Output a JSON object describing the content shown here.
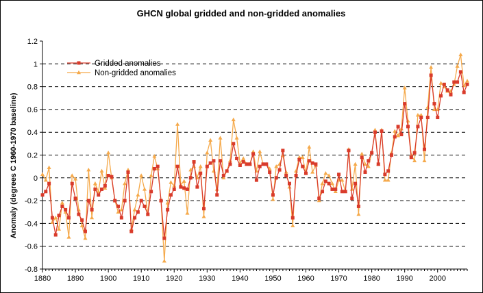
{
  "chart_data": {
    "type": "line",
    "title": "GHCN global gridded and non-gridded anomalies",
    "xlabel": "",
    "ylabel": "Anomaly (degrees C 1960-1970 baseline)",
    "xlim": [
      1880,
      2009
    ],
    "ylim": [
      -0.8,
      1.2
    ],
    "x_ticks": [
      "1880",
      "1890",
      "1900",
      "1910",
      "1920",
      "1930",
      "1940",
      "1950",
      "1960",
      "1970",
      "1980",
      "1990",
      "2000"
    ],
    "y_ticks": [
      "-0.8",
      "-0.6",
      "-0.4",
      "-0.2",
      "0",
      "0.2",
      "0.4",
      "0.6",
      "0.8",
      "1",
      "1.2"
    ],
    "grid": "horizontal dashed",
    "legend_position": "top-left",
    "x": [
      1880,
      1881,
      1882,
      1883,
      1884,
      1885,
      1886,
      1887,
      1888,
      1889,
      1890,
      1891,
      1892,
      1893,
      1894,
      1895,
      1896,
      1897,
      1898,
      1899,
      1900,
      1901,
      1902,
      1903,
      1904,
      1905,
      1906,
      1907,
      1908,
      1909,
      1910,
      1911,
      1912,
      1913,
      1914,
      1915,
      1916,
      1917,
      1918,
      1919,
      1920,
      1921,
      1922,
      1923,
      1924,
      1925,
      1926,
      1927,
      1928,
      1929,
      1930,
      1931,
      1932,
      1933,
      1934,
      1935,
      1936,
      1937,
      1938,
      1939,
      1940,
      1941,
      1942,
      1943,
      1944,
      1945,
      1946,
      1947,
      1948,
      1949,
      1950,
      1951,
      1952,
      1953,
      1954,
      1955,
      1956,
      1957,
      1958,
      1959,
      1960,
      1961,
      1962,
      1963,
      1964,
      1965,
      1966,
      1967,
      1968,
      1969,
      1970,
      1971,
      1972,
      1973,
      1974,
      1975,
      1976,
      1977,
      1978,
      1979,
      1980,
      1981,
      1982,
      1983,
      1984,
      1985,
      1986,
      1987,
      1988,
      1989,
      1990,
      1991,
      1992,
      1993,
      1994,
      1995,
      1996,
      1997,
      1998,
      1999,
      2000,
      2001,
      2002,
      2003,
      2004,
      2005,
      2006,
      2007,
      2008,
      2009
    ],
    "series": [
      {
        "name": "Gridded anomalies",
        "color": "#d93b2b",
        "marker": "square",
        "values": [
          -0.15,
          -0.12,
          -0.05,
          -0.35,
          -0.5,
          -0.33,
          -0.25,
          -0.28,
          -0.35,
          -0.05,
          -0.18,
          -0.32,
          -0.37,
          -0.47,
          -0.2,
          -0.28,
          -0.1,
          -0.15,
          -0.1,
          -0.07,
          0.02,
          0.01,
          -0.2,
          -0.25,
          -0.35,
          -0.2,
          0.05,
          -0.47,
          -0.35,
          -0.3,
          -0.2,
          -0.25,
          -0.32,
          -0.12,
          0.08,
          0.1,
          -0.2,
          -0.53,
          -0.28,
          -0.15,
          -0.1,
          0.1,
          -0.08,
          -0.09,
          -0.1,
          0.0,
          0.14,
          -0.08,
          0.04,
          -0.27,
          0.1,
          0.13,
          0.15,
          -0.15,
          0.15,
          0.02,
          0.06,
          0.12,
          0.3,
          0.17,
          0.11,
          0.14,
          0.12,
          0.12,
          0.21,
          -0.02,
          0.1,
          0.12,
          0.12,
          0.05,
          -0.15,
          0.0,
          0.07,
          0.24,
          0.02,
          -0.05,
          -0.35,
          0.02,
          0.16,
          0.1,
          0.04,
          0.15,
          0.13,
          0.12,
          -0.18,
          -0.12,
          -0.03,
          -0.05,
          -0.1,
          -0.1,
          0.03,
          -0.12,
          -0.12,
          0.24,
          -0.18,
          -0.05,
          -0.25,
          0.18,
          0.05,
          0.15,
          0.22,
          0.4,
          0.12,
          0.41,
          0.03,
          0.06,
          0.2,
          0.36,
          0.45,
          0.38,
          0.65,
          0.45,
          0.18,
          0.22,
          0.45,
          0.53,
          0.25,
          0.53,
          0.9,
          0.65,
          0.53,
          0.72,
          0.82,
          0.77,
          0.73,
          0.84,
          0.84,
          0.93,
          0.75,
          0.82
        ]
      },
      {
        "name": "Non-gridded anomalies",
        "color": "#f5a94a",
        "marker": "triangle",
        "values": [
          0.03,
          -0.02,
          0.09,
          -0.39,
          -0.35,
          -0.45,
          -0.22,
          -0.3,
          -0.52,
          0.02,
          -0.01,
          -0.28,
          -0.42,
          -0.53,
          0.07,
          -0.35,
          -0.05,
          -0.12,
          0.06,
          -0.09,
          0.22,
          0.0,
          -0.2,
          -0.3,
          -0.28,
          -0.05,
          0.07,
          -0.45,
          -0.28,
          -0.15,
          0.02,
          -0.1,
          -0.32,
          0.02,
          0.19,
          0.08,
          -0.2,
          -0.73,
          -0.22,
          -0.04,
          -0.07,
          0.47,
          -0.06,
          -0.03,
          -0.31,
          0.07,
          0.1,
          0.0,
          0.1,
          -0.34,
          0.22,
          0.33,
          0.06,
          -0.1,
          0.35,
          0.0,
          0.06,
          0.15,
          0.51,
          0.35,
          0.13,
          0.17,
          0.12,
          0.12,
          0.23,
          0.06,
          0.23,
          0.12,
          0.12,
          0.08,
          -0.19,
          0.1,
          0.12,
          0.2,
          0.05,
          -0.08,
          -0.42,
          0.06,
          0.18,
          0.18,
          0.04,
          0.27,
          0.05,
          0.11,
          -0.2,
          -0.05,
          0.04,
          0.02,
          -0.05,
          -0.12,
          -0.02,
          -0.02,
          -0.12,
          0.25,
          -0.1,
          0.12,
          -0.32,
          0.21,
          0.12,
          0.1,
          0.22,
          0.42,
          0.12,
          0.42,
          -0.02,
          -0.02,
          0.22,
          0.41,
          0.37,
          0.43,
          0.79,
          0.5,
          0.2,
          0.15,
          0.55,
          0.55,
          0.15,
          0.62,
          0.97,
          0.6,
          0.6,
          0.83,
          0.8,
          0.76,
          0.76,
          0.82,
          0.98,
          1.08,
          0.81,
          0.85
        ]
      }
    ]
  }
}
